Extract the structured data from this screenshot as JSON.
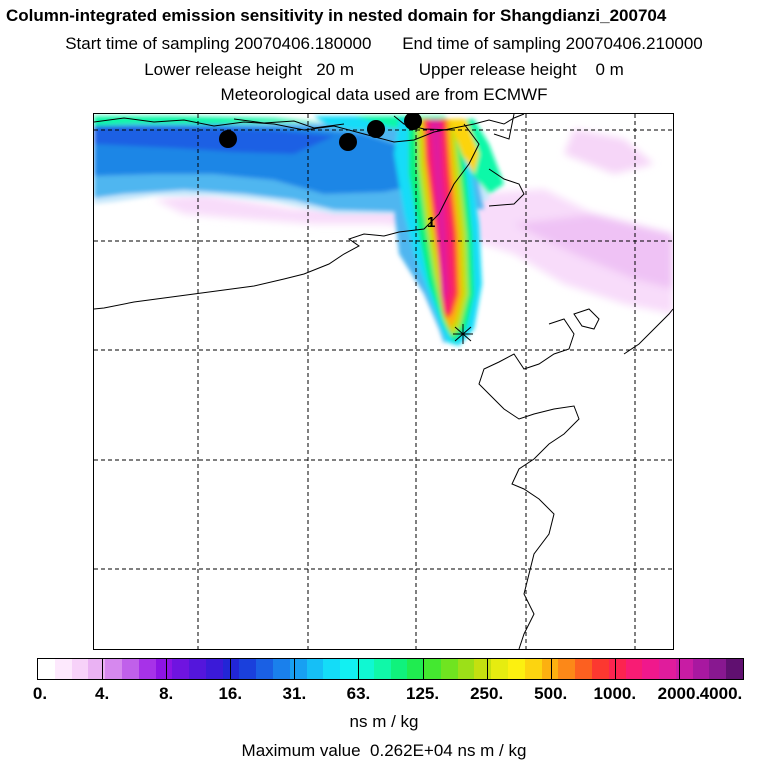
{
  "header": {
    "title": "Column-integrated emission sensitivity in nested domain for Shangdianzi_200704",
    "start_label": "Start time of sampling",
    "start_value": "20070406.180000",
    "end_label": "End time of sampling",
    "end_value": "20070406.210000",
    "lower_label": "Lower release height",
    "lower_value": "20 m",
    "upper_label": "Upper release height",
    "upper_value": "0 m",
    "met_line": "Meteorological data used are from ECMWF"
  },
  "map": {
    "marker_label": "1",
    "release_site": "Shangdianzi"
  },
  "colorbar": {
    "tick_labels": [
      "0.",
      "4.",
      "8.",
      "16.",
      "31.",
      "63.",
      "125.",
      "250.",
      "500.",
      "1000.",
      "2000.",
      "4000."
    ],
    "colors": [
      "#ffffff",
      "#fde9fd",
      "#f7d2f9",
      "#eab2f3",
      "#d688ee",
      "#c060ea",
      "#a732e8",
      "#8d14e4",
      "#6f14e0",
      "#5416dc",
      "#3b1ad8",
      "#2226d6",
      "#1a40dc",
      "#1a60e4",
      "#1a80ec",
      "#18a0f2",
      "#16bff6",
      "#14dcf8",
      "#12f0f2",
      "#10f8d2",
      "#10f8a8",
      "#10f27c",
      "#20ec50",
      "#44e830",
      "#70e420",
      "#9ce018",
      "#c4e010",
      "#e6ec10",
      "#fcf010",
      "#fcd410",
      "#fcb010",
      "#fc8818",
      "#fc6020",
      "#fc3830",
      "#fc2450",
      "#f81c74",
      "#f0188c",
      "#e01c9c",
      "#c81ca4",
      "#a818a0",
      "#881890",
      "#601070"
    ],
    "units": "ns m / kg"
  },
  "maximum": {
    "label": "Maximum value",
    "value": "0.262E+04",
    "units": "ns m / kg"
  }
}
